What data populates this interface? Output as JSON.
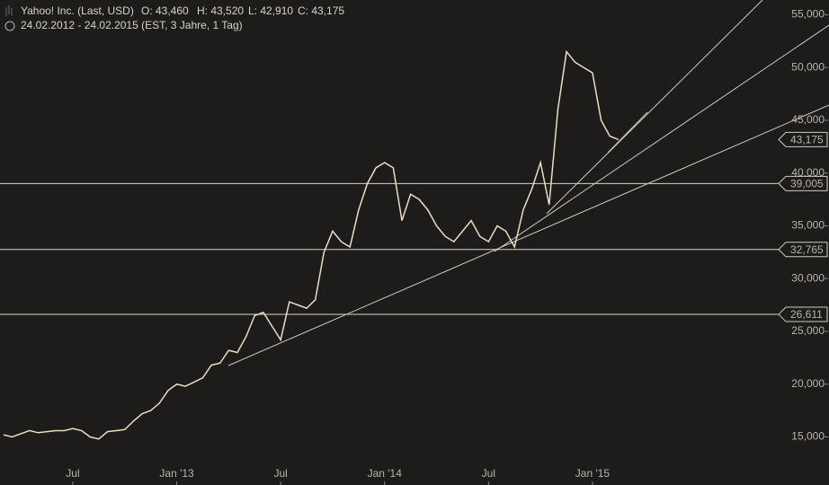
{
  "chart_data": {
    "type": "line",
    "title": "Yahoo! Inc. (Last, USD)",
    "ohlc": [
      "O: 43,460",
      "H: 43,520",
      "L: 42,910",
      "C: 43,175"
    ],
    "subtitle": "24.02.2012 - 24.02.2015 (EST, 3 Jahre, 1 Tag)",
    "categories": [
      null,
      null,
      null,
      null,
      null,
      null,
      null,
      null,
      "Jul",
      null,
      null,
      null,
      null,
      null,
      null,
      null,
      null,
      null,
      null,
      null,
      "Jan '13",
      null,
      null,
      null,
      null,
      null,
      null,
      null,
      null,
      null,
      null,
      null,
      "Jul",
      null,
      null,
      null,
      null,
      null,
      null,
      null,
      null,
      null,
      null,
      null,
      "Jan '14",
      null,
      null,
      null,
      null,
      null,
      null,
      null,
      null,
      null,
      null,
      null,
      "Jul",
      null,
      null,
      null,
      null,
      null,
      null,
      null,
      null,
      null,
      null,
      null,
      "Jan '15",
      null,
      null,
      null
    ],
    "series": [
      {
        "name": "Yahoo! Inc.",
        "color": "#e6dfc4",
        "values": [
          15200,
          15000,
          15300,
          15600,
          15400,
          15500,
          15600,
          15600,
          15800,
          15600,
          15000,
          14800,
          15500,
          15600,
          15700,
          16500,
          17200,
          17500,
          18200,
          19400,
          20000,
          19800,
          20200,
          20600,
          21800,
          22000,
          23200,
          23000,
          24500,
          26500,
          26800,
          25500,
          24200,
          27800,
          27500,
          27200,
          28000,
          32500,
          34500,
          33500,
          33000,
          36500,
          39000,
          40500,
          41000,
          40500,
          35500,
          38000,
          37500,
          36500,
          35000,
          34000,
          33500,
          34500,
          35500,
          34000,
          33500,
          35000,
          34500,
          33000,
          36500,
          38500,
          41000,
          37000,
          46000,
          51500,
          50500,
          50000,
          49500,
          45000,
          43500,
          43175
        ]
      }
    ],
    "last": {
      "value": 43175,
      "label": "43,175"
    },
    "levels": [
      {
        "value": 39005,
        "label": "39,005"
      },
      {
        "value": 32765,
        "label": "32,765"
      },
      {
        "value": 26611,
        "label": "26,611"
      }
    ],
    "ylim": [
      13000,
      56400
    ],
    "yticks": [
      {
        "value": 15000,
        "label": "15,000"
      },
      {
        "value": 20000,
        "label": "20,000"
      },
      {
        "value": 25000,
        "label": "25,000"
      },
      {
        "value": 30000,
        "label": "30,000"
      },
      {
        "value": 35000,
        "label": "35,000"
      },
      {
        "value": 40000,
        "label": "40,000"
      },
      {
        "value": 45000,
        "label": "45,000"
      },
      {
        "value": 50000,
        "label": "50,000"
      },
      {
        "value": 55000,
        "label": "55,000"
      }
    ],
    "grid": false
  }
}
